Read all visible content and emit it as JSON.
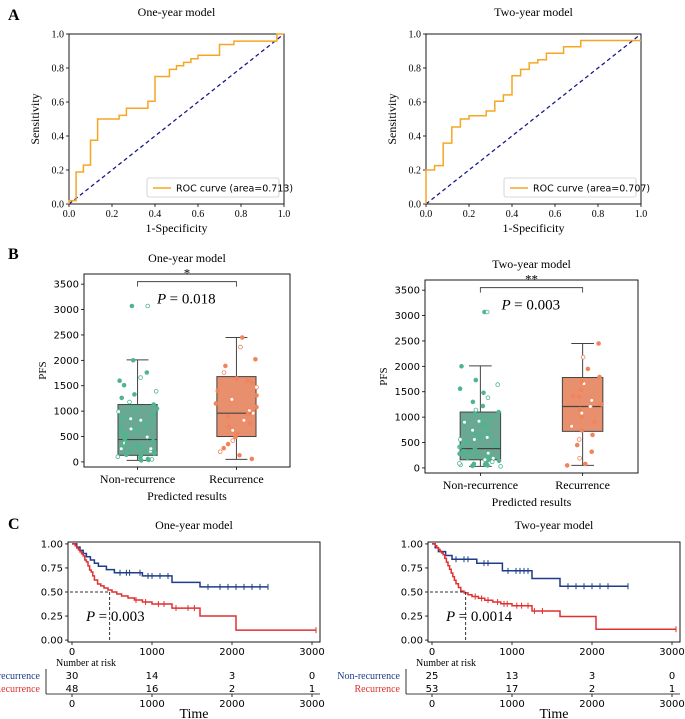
{
  "panel_labels": [
    "A",
    "B",
    "C"
  ],
  "chart_data": [
    {
      "type": "line",
      "subtype": "roc",
      "panel": "A",
      "title": "One-year model",
      "xlabel": "1-Specificity",
      "ylabel": "Sensitivity",
      "xlim": [
        0,
        1
      ],
      "ylim": [
        0,
        1
      ],
      "xticks": [
        "0.0",
        "0.2",
        "0.4",
        "0.6",
        "0.8",
        "1.0"
      ],
      "yticks": [
        "0.0",
        "0.2",
        "0.4",
        "0.6",
        "0.8",
        "1.0"
      ],
      "legend": "ROC curve (area=0.713)",
      "legend_position": "bottom-right",
      "colors": {
        "curve": "#f5a623",
        "diagonal": "#1a1a8c"
      },
      "fpr": [
        0,
        0,
        0.033,
        0.033,
        0.067,
        0.067,
        0.1,
        0.1,
        0.133,
        0.133,
        0.233,
        0.233,
        0.267,
        0.267,
        0.3,
        0.3,
        0.367,
        0.367,
        0.4,
        0.4,
        0.467,
        0.467,
        0.5,
        0.5,
        0.533,
        0.533,
        0.567,
        0.567,
        0.6,
        0.6,
        0.7,
        0.7,
        0.767,
        0.767,
        0.967,
        0.967,
        1
      ],
      "tpr": [
        0,
        0.02,
        0.02,
        0.188,
        0.188,
        0.229,
        0.229,
        0.375,
        0.375,
        0.5,
        0.5,
        0.521,
        0.521,
        0.563,
        0.563,
        0.563,
        0.563,
        0.604,
        0.604,
        0.75,
        0.75,
        0.792,
        0.792,
        0.813,
        0.813,
        0.833,
        0.833,
        0.854,
        0.854,
        0.875,
        0.875,
        0.938,
        0.938,
        0.958,
        0.958,
        1,
        1
      ]
    },
    {
      "type": "line",
      "subtype": "roc",
      "panel": "A",
      "title": "Two-year model",
      "xlabel": "1-Specificity",
      "ylabel": "Sensitivity",
      "xlim": [
        0,
        1
      ],
      "ylim": [
        0,
        1
      ],
      "xticks": [
        "0.0",
        "0.2",
        "0.4",
        "0.6",
        "0.8",
        "1.0"
      ],
      "yticks": [
        "0.0",
        "0.2",
        "0.4",
        "0.6",
        "0.8",
        "1.0"
      ],
      "legend": "ROC curve (area=0.707)",
      "legend_position": "bottom-right",
      "colors": {
        "curve": "#f5a623",
        "diagonal": "#1a1a8c"
      },
      "fpr": [
        0,
        0,
        0.04,
        0.04,
        0.08,
        0.08,
        0.12,
        0.12,
        0.16,
        0.16,
        0.2,
        0.2,
        0.28,
        0.28,
        0.32,
        0.32,
        0.36,
        0.36,
        0.4,
        0.4,
        0.44,
        0.44,
        0.48,
        0.48,
        0.52,
        0.52,
        0.56,
        0.56,
        0.64,
        0.64,
        0.72,
        0.72,
        1
      ],
      "tpr": [
        0,
        0.2,
        0.2,
        0.226,
        0.226,
        0.358,
        0.358,
        0.453,
        0.453,
        0.5,
        0.5,
        0.519,
        0.519,
        0.547,
        0.547,
        0.604,
        0.604,
        0.642,
        0.642,
        0.755,
        0.755,
        0.792,
        0.792,
        0.83,
        0.83,
        0.849,
        0.849,
        0.887,
        0.887,
        0.925,
        0.925,
        0.962,
        0.962
      ]
    },
    {
      "type": "box",
      "panel": "B",
      "title": "One-year model",
      "xlabel": "Predicted results",
      "ylabel": "PFS",
      "ylim": [
        -100,
        3700
      ],
      "yticks": [
        "0",
        "500",
        "1000",
        "1500",
        "2000",
        "2500",
        "3000",
        "3500"
      ],
      "categories": [
        "Non-recurrence",
        "Recurrence"
      ],
      "colors": [
        "#6aa893",
        "#e88f6e"
      ],
      "point_colors": [
        "#4fb58f",
        "#f0855c"
      ],
      "boxes": [
        {
          "whisker_low": 30,
          "q1": 130,
          "median": 440,
          "q3": 1130,
          "whisker_high": 2010,
          "outliers": [
            3070
          ]
        },
        {
          "whisker_low": 50,
          "q1": 500,
          "median": 960,
          "q3": 1680,
          "whisker_high": 2450,
          "outliers": []
        }
      ],
      "points": [
        [
          3070,
          3070,
          2000,
          1760,
          1660,
          1600,
          1510,
          1390,
          1330,
          1260,
          1180,
          1130,
          1050,
          990,
          930,
          880,
          820,
          760,
          700,
          650,
          590,
          540,
          490,
          450,
          410,
          370,
          330,
          290,
          260,
          230,
          200,
          170,
          140,
          120,
          100,
          80,
          60,
          50,
          40,
          30,
          210,
          360,
          610,
          850,
          1020,
          180,
          260,
          700
        ],
        [
          2450,
          2260,
          2020,
          1890,
          1760,
          1640,
          1560,
          1470,
          1400,
          1310,
          1230,
          1150,
          1080,
          1010,
          950,
          890,
          820,
          760,
          690,
          620,
          560,
          490,
          420,
          350,
          270,
          200,
          130,
          60,
          960,
          1600
        ]
      ],
      "significance": {
        "stars": "*",
        "p_text": "= 0.018"
      }
    },
    {
      "type": "box",
      "panel": "B",
      "title": "Two-year model",
      "xlabel": "Predicted results",
      "ylabel": "PFS",
      "ylim": [
        -100,
        3700
      ],
      "yticks": [
        "0",
        "500",
        "1000",
        "1500",
        "2000",
        "2500",
        "3000",
        "3500"
      ],
      "categories": [
        "Non-recurrence",
        "Recurrence"
      ],
      "colors": [
        "#6aa893",
        "#e88f6e"
      ],
      "point_colors": [
        "#4fb58f",
        "#f0855c"
      ],
      "boxes": [
        {
          "whisker_low": 30,
          "q1": 160,
          "median": 380,
          "q3": 1100,
          "whisker_high": 2010,
          "outliers": [
            3070
          ]
        },
        {
          "whisker_low": 50,
          "q1": 720,
          "median": 1210,
          "q3": 1780,
          "whisker_high": 2450,
          "outliers": []
        }
      ],
      "points": [
        [
          3070,
          3070,
          2000,
          1730,
          1640,
          1560,
          1480,
          1380,
          1300,
          1220,
          1140,
          1060,
          990,
          920,
          860,
          800,
          740,
          680,
          620,
          560,
          510,
          460,
          410,
          370,
          330,
          290,
          250,
          220,
          190,
          160,
          140,
          120,
          100,
          80,
          60,
          50,
          40,
          30,
          200,
          310,
          560,
          830,
          1010,
          160,
          240,
          680,
          900,
          1100,
          420,
          90,
          70,
          280,
          600
        ],
        [
          2450,
          2180,
          1950,
          1790,
          1660,
          1540,
          1420,
          1330,
          1250,
          1160,
          1080,
          1000,
          910,
          820,
          740,
          650,
          560,
          450,
          320,
          190,
          80,
          50,
          1210,
          1700,
          1400
        ]
      ],
      "significance": {
        "stars": "**",
        "p_text": "= 0.003"
      }
    },
    {
      "type": "line",
      "subtype": "kaplan-meier",
      "panel": "C",
      "title": "One-year model",
      "xlabel": "Time",
      "xlim": [
        -50,
        3100
      ],
      "ylim": [
        -0.02,
        1.02
      ],
      "xticks": [
        "0",
        "1000",
        "2000",
        "3000"
      ],
      "yticks": [
        "0.00",
        "0.25",
        "0.50",
        "0.75",
        "1.00"
      ],
      "series": [
        {
          "name": "Non-recurrence",
          "color": "#1f3c88",
          "times": [
            0,
            60,
            100,
            140,
            180,
            230,
            280,
            330,
            430,
            530,
            880,
            1250,
            1600
          ],
          "survival": [
            1.0,
            0.967,
            0.933,
            0.9,
            0.867,
            0.833,
            0.8,
            0.767,
            0.733,
            0.7,
            0.667,
            0.6,
            0.553
          ],
          "end": 2450,
          "censored": [
            600,
            680,
            720,
            850,
            950,
            1000,
            1100,
            1200,
            1700,
            1850,
            1950,
            2050,
            2150,
            2250,
            2350,
            2450
          ]
        },
        {
          "name": "Recurrence",
          "color": "#e03030",
          "times": [
            0,
            40,
            60,
            80,
            100,
            120,
            140,
            160,
            180,
            200,
            220,
            240,
            260,
            280,
            320,
            360,
            400,
            450,
            500,
            560,
            620,
            700,
            780,
            880,
            1000,
            1250,
            1600,
            2050
          ],
          "survival": [
            1.0,
            0.979,
            0.958,
            0.938,
            0.917,
            0.896,
            0.875,
            0.833,
            0.813,
            0.771,
            0.729,
            0.708,
            0.667,
            0.625,
            0.583,
            0.563,
            0.542,
            0.521,
            0.5,
            0.479,
            0.458,
            0.438,
            0.417,
            0.396,
            0.375,
            0.333,
            0.25,
            0.104
          ],
          "end": 3050,
          "censored": [
            800,
            920,
            1080,
            1150,
            1300,
            1450,
            1530,
            3050
          ]
        }
      ],
      "median_guide": {
        "x": 470,
        "y": 0.5
      },
      "p_text": "= 0.003",
      "risk_table": {
        "label": "Number at risk",
        "rows": [
          {
            "name": "Non-recurrence",
            "color": "#1f3c88",
            "counts": [
              "30",
              "14",
              "3",
              "0"
            ]
          },
          {
            "name": "Recurrence",
            "color": "#e03030",
            "counts": [
              "48",
              "16",
              "2",
              "1"
            ]
          }
        ]
      }
    },
    {
      "type": "line",
      "subtype": "kaplan-meier",
      "panel": "C",
      "title": "Two-year model",
      "xlabel": "Time",
      "xlim": [
        -50,
        3100
      ],
      "ylim": [
        -0.02,
        1.02
      ],
      "xticks": [
        "0",
        "1000",
        "2000",
        "3000"
      ],
      "yticks": [
        "0.00",
        "0.25",
        "0.50",
        "0.75",
        "1.00"
      ],
      "series": [
        {
          "name": "Non-recurrence",
          "color": "#1f3c88",
          "times": [
            0,
            40,
            80,
            120,
            170,
            250,
            560,
            880,
            1250,
            1600
          ],
          "survival": [
            1.0,
            0.96,
            0.92,
            0.92,
            0.88,
            0.84,
            0.8,
            0.72,
            0.64,
            0.56
          ],
          "end": 2450,
          "censored": [
            300,
            400,
            450,
            650,
            700,
            950,
            1050,
            1100,
            1150,
            1200,
            1700,
            1800,
            1900,
            2000,
            2100,
            2200,
            2450
          ]
        },
        {
          "name": "Recurrence",
          "color": "#e03030",
          "times": [
            0,
            40,
            60,
            80,
            100,
            120,
            140,
            160,
            180,
            200,
            220,
            240,
            260,
            280,
            300,
            330,
            360,
            400,
            450,
            500,
            580,
            660,
            760,
            860,
            1000,
            1250,
            1600,
            2050
          ],
          "survival": [
            1.0,
            0.981,
            0.962,
            0.943,
            0.925,
            0.906,
            0.887,
            0.849,
            0.811,
            0.774,
            0.736,
            0.698,
            0.66,
            0.623,
            0.585,
            0.547,
            0.509,
            0.491,
            0.472,
            0.453,
            0.434,
            0.415,
            0.396,
            0.377,
            0.358,
            0.302,
            0.245,
            0.113
          ],
          "end": 3050,
          "censored": [
            540,
            620,
            700,
            820,
            900,
            940,
            1060,
            1120,
            1200,
            1280,
            1380,
            3050
          ]
        }
      ],
      "median_guide": {
        "x": 420,
        "y": 0.5
      },
      "p_text": "= 0.0014",
      "risk_table": {
        "label": "Number at risk",
        "rows": [
          {
            "name": "Non-recurrence",
            "color": "#1f3c88",
            "counts": [
              "25",
              "13",
              "3",
              "0"
            ]
          },
          {
            "name": "Recurrence",
            "color": "#e03030",
            "counts": [
              "53",
              "17",
              "2",
              "1"
            ]
          }
        ]
      }
    }
  ]
}
